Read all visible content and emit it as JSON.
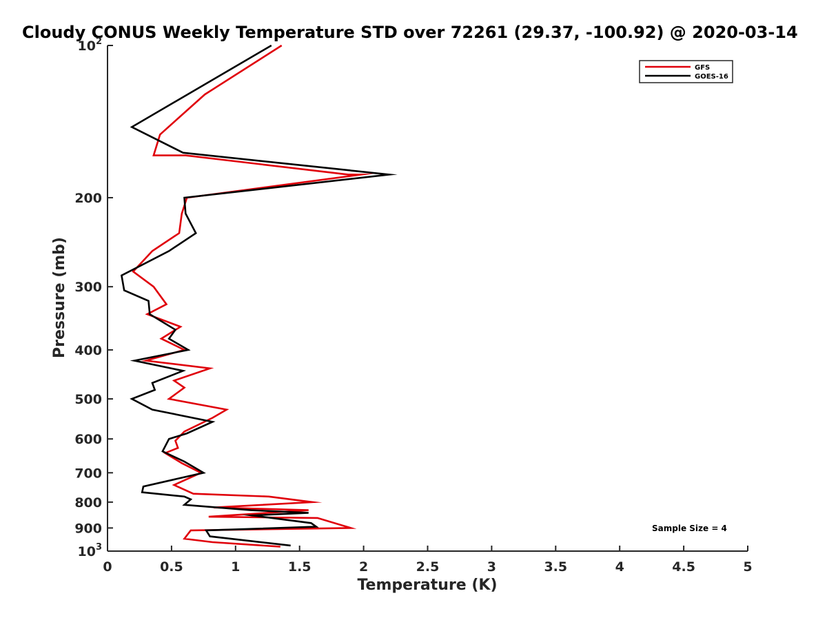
{
  "chart_data": {
    "type": "line",
    "title": "Cloudy CONUS Weekly Temperature STD over 72261 (29.37, -100.92) @ 2020-03-14",
    "xlabel": "Temperature (K)",
    "ylabel": "Pressure (mb)",
    "xlim": [
      0,
      5
    ],
    "ylim": [
      100,
      1000
    ],
    "y_scale": "log",
    "y_reversed": true,
    "x_ticks": [
      "0",
      "0.5",
      "1",
      "1.5",
      "2",
      "2.5",
      "3",
      "3.5",
      "4",
      "4.5",
      "5"
    ],
    "y_ticks": [
      {
        "value": 100,
        "base": "10",
        "exp": "2"
      },
      {
        "value": 200,
        "label": "200"
      },
      {
        "value": 300,
        "label": "300"
      },
      {
        "value": 400,
        "label": "400"
      },
      {
        "value": 500,
        "label": "500"
      },
      {
        "value": 600,
        "label": "600"
      },
      {
        "value": 700,
        "label": "700"
      },
      {
        "value": 800,
        "label": "800"
      },
      {
        "value": 900,
        "label": "900"
      },
      {
        "value": 1000,
        "base": "10",
        "exp": "3"
      }
    ],
    "legend_position": "top-right",
    "annotation": "Sample Size = 4",
    "series": [
      {
        "name": "GFS",
        "color": "#e0000a",
        "points": [
          [
            1.36,
            100
          ],
          [
            0.76,
            125
          ],
          [
            0.41,
            150
          ],
          [
            0.36,
            165
          ],
          [
            0.61,
            165
          ],
          [
            1.88,
            180
          ],
          [
            1.98,
            180
          ],
          [
            0.62,
            200
          ],
          [
            0.58,
            215
          ],
          [
            0.56,
            235
          ],
          [
            0.35,
            255
          ],
          [
            0.2,
            280
          ],
          [
            0.36,
            300
          ],
          [
            0.46,
            325
          ],
          [
            0.31,
            340
          ],
          [
            0.57,
            360
          ],
          [
            0.42,
            380
          ],
          [
            0.6,
            400
          ],
          [
            0.3,
            420
          ],
          [
            0.8,
            435
          ],
          [
            0.52,
            460
          ],
          [
            0.6,
            475
          ],
          [
            0.48,
            500
          ],
          [
            0.93,
            525
          ],
          [
            0.82,
            545
          ],
          [
            0.6,
            580
          ],
          [
            0.53,
            605
          ],
          [
            0.55,
            625
          ],
          [
            0.45,
            640
          ],
          [
            0.58,
            670
          ],
          [
            0.73,
            700
          ],
          [
            0.52,
            740
          ],
          [
            0.67,
            770
          ],
          [
            1.26,
            780
          ],
          [
            1.6,
            800
          ],
          [
            0.83,
            820
          ],
          [
            1.57,
            830
          ],
          [
            0.79,
            855
          ],
          [
            1.64,
            860
          ],
          [
            1.9,
            900
          ],
          [
            0.65,
            910
          ],
          [
            0.6,
            945
          ],
          [
            0.82,
            960
          ],
          [
            1.35,
            980
          ]
        ]
      },
      {
        "name": "GOES-16",
        "color": "#000000",
        "points": [
          [
            1.28,
            100
          ],
          [
            0.19,
            145
          ],
          [
            0.59,
            163
          ],
          [
            2.2,
            180
          ],
          [
            0.6,
            200
          ],
          [
            0.61,
            215
          ],
          [
            0.69,
            235
          ],
          [
            0.48,
            255
          ],
          [
            0.11,
            285
          ],
          [
            0.13,
            305
          ],
          [
            0.32,
            320
          ],
          [
            0.33,
            340
          ],
          [
            0.53,
            365
          ],
          [
            0.48,
            380
          ],
          [
            0.63,
            400
          ],
          [
            0.21,
            420
          ],
          [
            0.59,
            440
          ],
          [
            0.35,
            465
          ],
          [
            0.37,
            480
          ],
          [
            0.19,
            500
          ],
          [
            0.35,
            525
          ],
          [
            0.82,
            555
          ],
          [
            0.62,
            585
          ],
          [
            0.48,
            600
          ],
          [
            0.43,
            635
          ],
          [
            0.6,
            665
          ],
          [
            0.75,
            700
          ],
          [
            0.28,
            745
          ],
          [
            0.27,
            765
          ],
          [
            0.6,
            780
          ],
          [
            0.65,
            790
          ],
          [
            0.6,
            810
          ],
          [
            1.12,
            830
          ],
          [
            1.57,
            840
          ],
          [
            1.13,
            850
          ],
          [
            1.59,
            880
          ],
          [
            1.63,
            895
          ],
          [
            0.77,
            910
          ],
          [
            0.8,
            935
          ],
          [
            1.43,
            975
          ]
        ]
      }
    ]
  }
}
